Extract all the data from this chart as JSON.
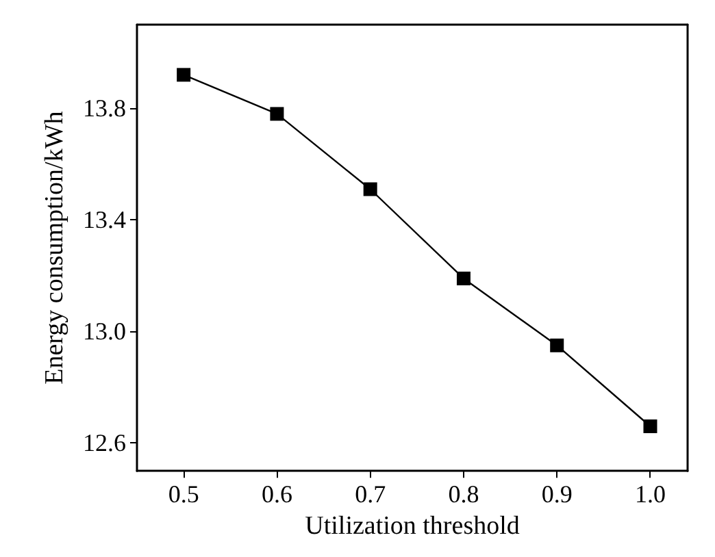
{
  "chart_data": {
    "type": "line",
    "xlabel": "Utilization threshold",
    "ylabel": "Energy consumption/kWh",
    "x": [
      0.5,
      0.6,
      0.7,
      0.8,
      0.9,
      1.0
    ],
    "series": [
      {
        "color": "#000000",
        "values": [
          13.92,
          13.78,
          13.51,
          13.19,
          12.95,
          12.66
        ]
      }
    ],
    "xlim": [
      0.45,
      1.04
    ],
    "xticks": [
      0.5,
      0.6,
      0.7,
      0.8,
      0.9,
      {
        "value": 1.0,
        "label": "1.0"
      }
    ],
    "ylim": [
      12.5,
      14.1
    ],
    "yticks": [
      12.6,
      {
        "value": 13.0,
        "label": "13.0"
      },
      13.4,
      13.8
    ],
    "grid": false,
    "marker": "square",
    "line_style": "solid"
  }
}
